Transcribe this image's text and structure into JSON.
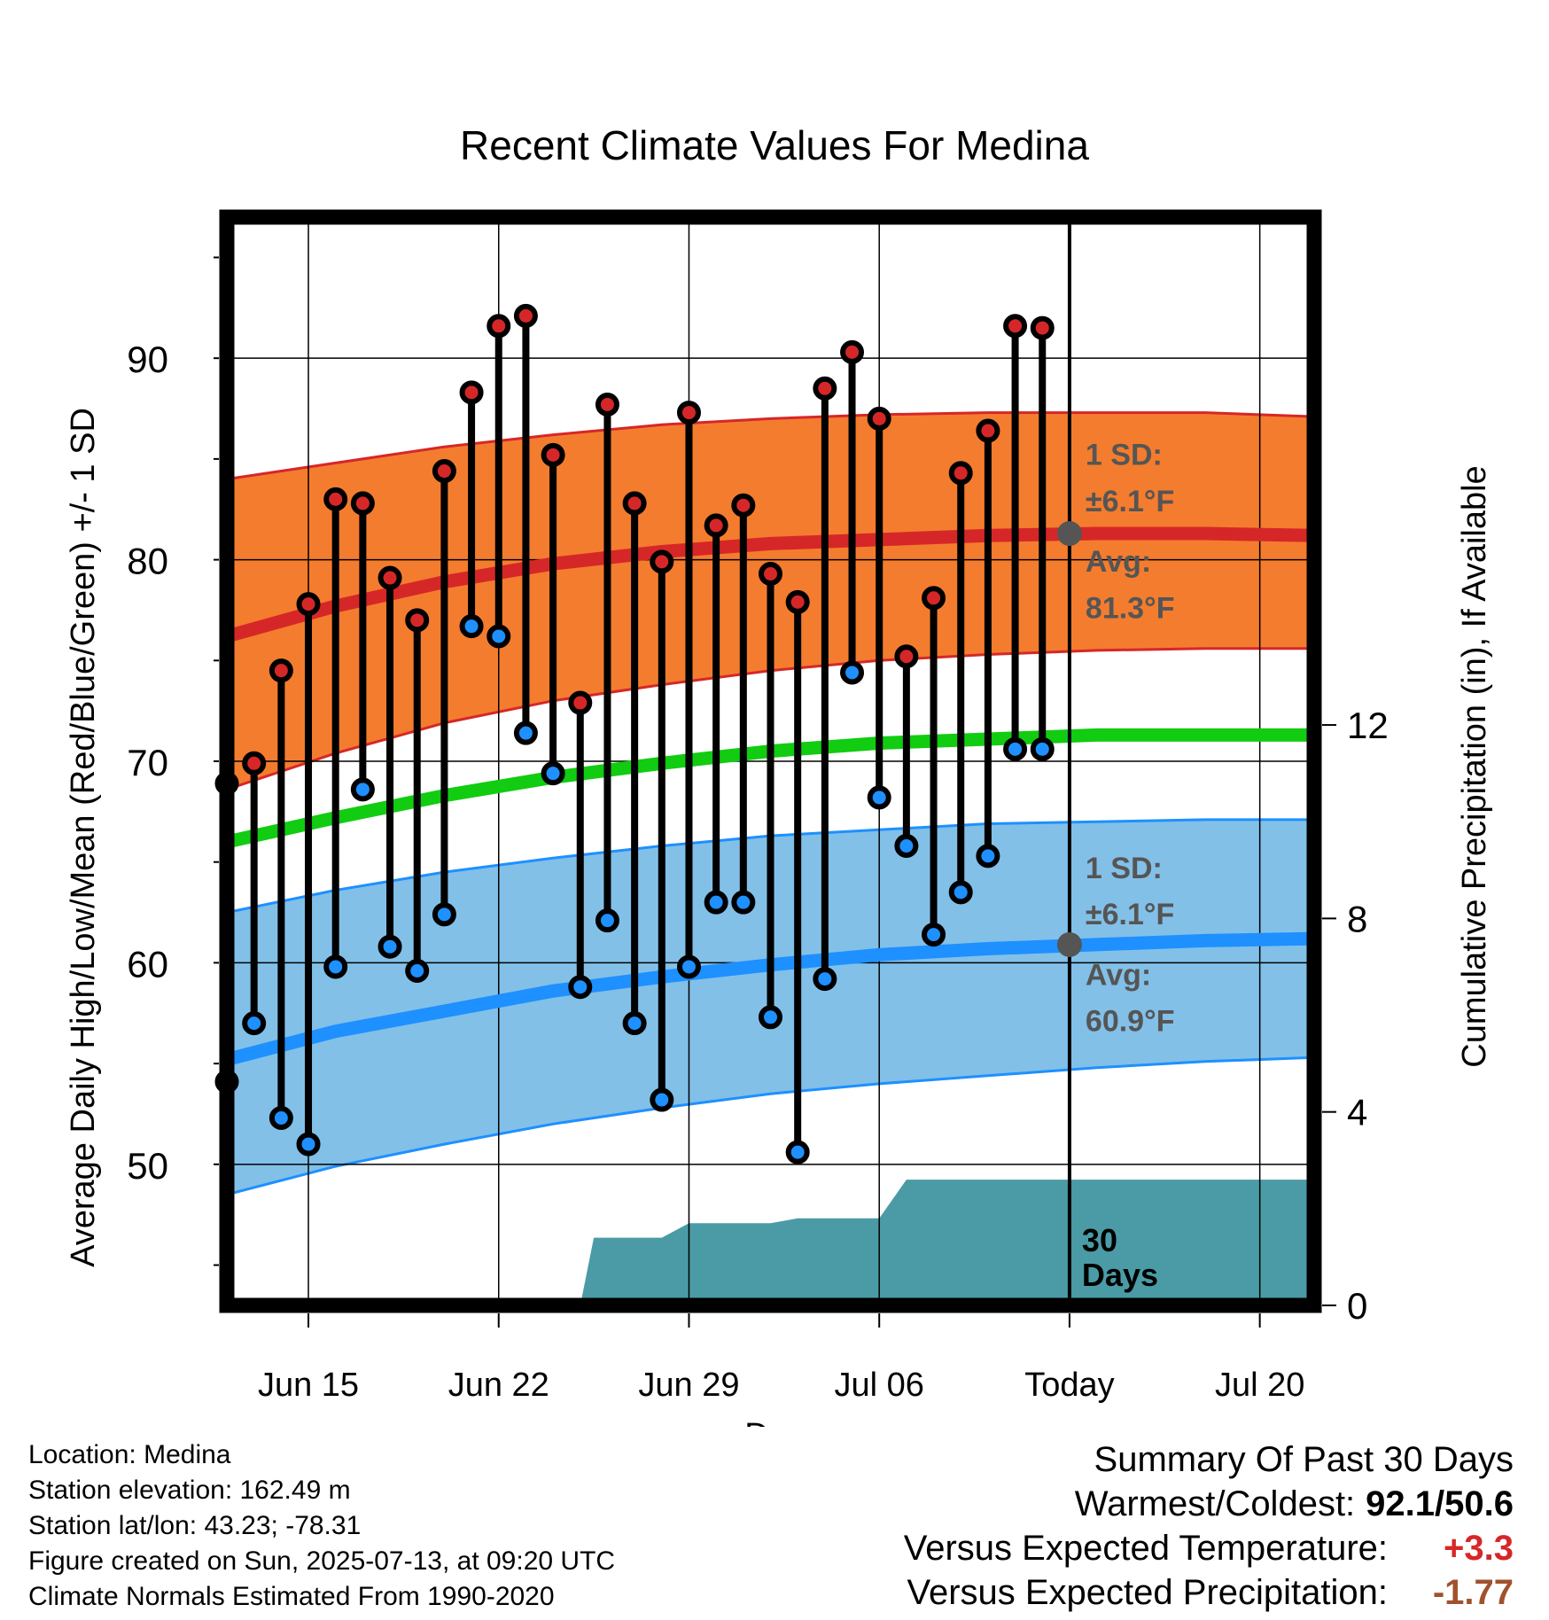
{
  "chart_data": {
    "type": "line",
    "title": "Recent Climate Values For Medina",
    "xlabel": "Day",
    "ylabel_left": "Average Daily High/Low/Mean (Red/Blue/Green) +/- 1 SD",
    "ylabel_right": "Cumulative Precipitation (in), If Available",
    "ylim_left": [
      43,
      97
    ],
    "ylim_right": [
      0,
      22.5
    ],
    "y_ticks_left": [
      "50",
      "60",
      "70",
      "80",
      "90"
    ],
    "y_ticks_right": [
      "0",
      "4",
      "8",
      "12"
    ],
    "x_ticks": [
      {
        "day": 16,
        "label": "Jun 15"
      },
      {
        "day": 23,
        "label": "Jun 22"
      },
      {
        "day": 30,
        "label": "Jun 29"
      },
      {
        "day": 37,
        "label": "Jul 06"
      },
      {
        "day": 44,
        "label": "Today"
      },
      {
        "day": 51,
        "label": "Jul 20"
      }
    ],
    "x_range": [
      13,
      53
    ],
    "grid": true,
    "today_day": 44,
    "daily": {
      "days": [
        13,
        14,
        15,
        16,
        17,
        18,
        19,
        20,
        21,
        22,
        23,
        24,
        25,
        26,
        27,
        28,
        29,
        30,
        31,
        32,
        33,
        34,
        35,
        36,
        37,
        38,
        39,
        40,
        41,
        42,
        43
      ],
      "high": [
        68.9,
        69.9,
        74.5,
        77.8,
        83.0,
        82.8,
        79.1,
        77.0,
        84.4,
        88.3,
        91.6,
        92.1,
        85.2,
        72.9,
        87.7,
        82.8,
        79.9,
        87.3,
        81.7,
        82.7,
        79.3,
        77.9,
        88.5,
        90.3,
        87.0,
        75.2,
        78.1,
        84.3,
        86.4,
        91.6,
        91.5
      ],
      "low": [
        54.1,
        57.0,
        52.3,
        51.0,
        59.8,
        68.6,
        60.8,
        59.6,
        62.4,
        76.7,
        76.2,
        71.4,
        69.4,
        58.8,
        62.1,
        57.0,
        53.2,
        59.8,
        63.0,
        63.0,
        57.3,
        50.6,
        59.2,
        74.4,
        68.2,
        65.8,
        61.4,
        63.5,
        65.3,
        70.6,
        70.6
      ]
    },
    "normals": {
      "days": [
        13,
        17,
        21,
        25,
        29,
        33,
        37,
        41,
        45,
        49,
        53
      ],
      "high_avg": [
        76.2,
        77.7,
        78.9,
        79.8,
        80.4,
        80.8,
        81.0,
        81.2,
        81.3,
        81.3,
        81.2
      ],
      "high_upper": [
        84.0,
        84.8,
        85.6,
        86.2,
        86.7,
        87.0,
        87.2,
        87.3,
        87.3,
        87.3,
        87.1
      ],
      "high_lower": [
        68.6,
        70.4,
        71.9,
        73.0,
        73.8,
        74.5,
        75.0,
        75.3,
        75.5,
        75.6,
        75.6
      ],
      "mean_avg": [
        66.0,
        67.2,
        68.3,
        69.2,
        69.9,
        70.5,
        70.9,
        71.1,
        71.3,
        71.3,
        71.3
      ],
      "low_avg": [
        55.2,
        56.6,
        57.6,
        58.6,
        59.3,
        59.9,
        60.4,
        60.7,
        60.9,
        61.1,
        61.2
      ],
      "low_upper": [
        62.5,
        63.6,
        64.5,
        65.2,
        65.8,
        66.3,
        66.6,
        66.9,
        67.0,
        67.1,
        67.1
      ],
      "low_lower": [
        48.5,
        49.9,
        51.0,
        52.0,
        52.8,
        53.5,
        54.0,
        54.4,
        54.8,
        55.1,
        55.3
      ]
    },
    "precip_cumulative": {
      "days": [
        13,
        26,
        26.5,
        29,
        30,
        33,
        34,
        37,
        38,
        53
      ],
      "values": [
        0,
        0,
        1.4,
        1.4,
        1.7,
        1.7,
        1.8,
        1.8,
        2.6,
        2.6
      ]
    },
    "annotations": {
      "high_sd": "1 SD:",
      "high_sd_value": "±6.1°F",
      "high_avg": "Avg:",
      "high_avg_value": "81.3°F",
      "low_sd": "1 SD:",
      "low_sd_value": "±6.1°F",
      "low_avg": "Avg:",
      "low_avg_value": "60.9°F",
      "precip_period": "30",
      "precip_period_unit": "Days"
    },
    "colors": {
      "high_band": "#f47c2e",
      "high_line": "#d62728",
      "high_dot": "#d62728",
      "low_band": "#82c0e8",
      "low_line": "#1e90ff",
      "low_dot": "#1e90ff",
      "mean_line": "#11cc11",
      "precip": "#4a9ba6",
      "annotation": "#555555"
    }
  },
  "info": {
    "location": "Location: Medina",
    "elevation": "Station elevation: 162.49 m",
    "latlon": "Station lat/lon: 43.23; -78.31",
    "created": "Figure created on Sun, 2025-07-13, at 09:20 UTC",
    "normals": "Climate Normals Estimated From 1990-2020"
  },
  "summary": {
    "title": "Summary Of Past 30 Days",
    "warmest_coldest_label": "Warmest/Coldest:",
    "warmest_coldest_value": "92.1/50.6",
    "temp_label": "Versus Expected Temperature:",
    "temp_value": "+3.3",
    "temp_color": "#d62728",
    "precip_label": "Versus Expected Precipitation:",
    "precip_value": "-1.77",
    "precip_color": "#a0522d"
  }
}
